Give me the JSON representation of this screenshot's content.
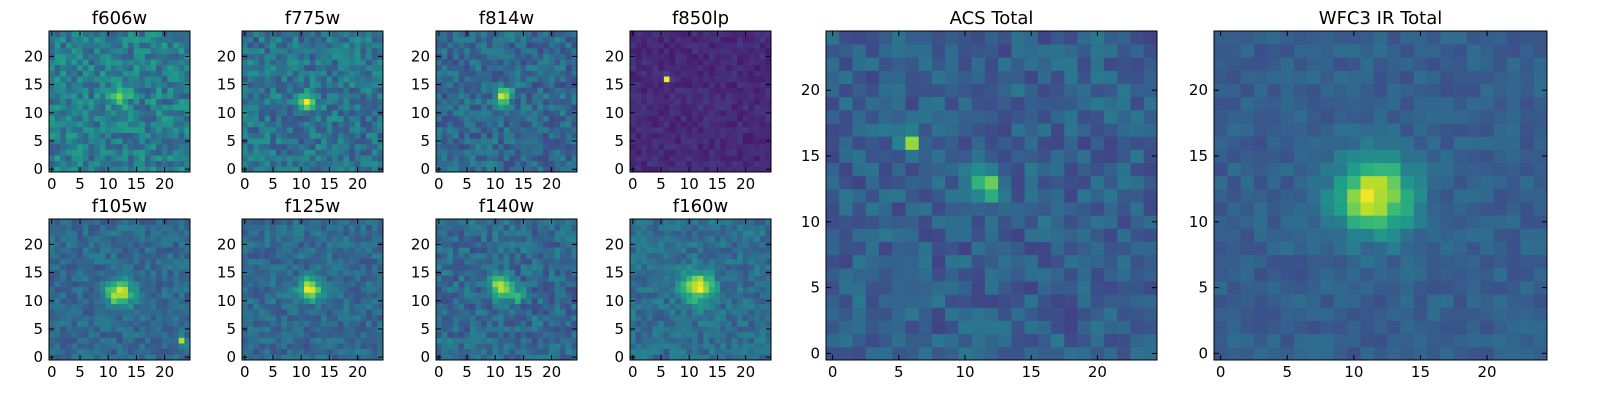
{
  "chart_data": [
    {
      "type": "heatmap",
      "title": "f606w",
      "x_ticks": [
        0,
        5,
        10,
        15,
        20
      ],
      "y_ticks": [
        0,
        5,
        10,
        15,
        20
      ],
      "xlim": [
        -0.5,
        24.5
      ],
      "ylim": [
        -0.5,
        24.5
      ],
      "grid_size": 25,
      "colormap": "viridis",
      "background_level": 0.42,
      "noise_amplitude": 0.3,
      "sources": [
        {
          "x": 12,
          "y": 13,
          "amplitude": 0.5,
          "sigma": 1.1
        }
      ]
    },
    {
      "type": "heatmap",
      "title": "f775w",
      "x_ticks": [
        0,
        5,
        10,
        15,
        20
      ],
      "y_ticks": [
        0,
        5,
        10,
        15,
        20
      ],
      "xlim": [
        -0.5,
        24.5
      ],
      "ylim": [
        -0.5,
        24.5
      ],
      "grid_size": 25,
      "colormap": "viridis",
      "background_level": 0.38,
      "noise_amplitude": 0.28,
      "sources": [
        {
          "x": 11,
          "y": 12,
          "amplitude": 0.55,
          "sigma": 1.1
        }
      ]
    },
    {
      "type": "heatmap",
      "title": "f814w",
      "x_ticks": [
        0,
        5,
        10,
        15,
        20
      ],
      "y_ticks": [
        0,
        5,
        10,
        15,
        20
      ],
      "xlim": [
        -0.5,
        24.5
      ],
      "ylim": [
        -0.5,
        24.5
      ],
      "grid_size": 25,
      "colormap": "viridis",
      "background_level": 0.34,
      "noise_amplitude": 0.26,
      "sources": [
        {
          "x": 11.5,
          "y": 13,
          "amplitude": 0.6,
          "sigma": 1.0
        }
      ]
    },
    {
      "type": "heatmap",
      "title": "f850lp",
      "x_ticks": [
        0,
        5,
        10,
        15,
        20
      ],
      "y_ticks": [
        0,
        5,
        10,
        15,
        20
      ],
      "xlim": [
        -0.5,
        24.5
      ],
      "ylim": [
        -0.5,
        24.5
      ],
      "grid_size": 25,
      "colormap": "viridis",
      "background_level": 0.12,
      "noise_amplitude": 0.1,
      "sources": [
        {
          "x": 6,
          "y": 16,
          "amplitude": 0.85,
          "sigma": 0.4
        }
      ]
    },
    {
      "type": "heatmap",
      "title": "f105w",
      "x_ticks": [
        0,
        5,
        10,
        15,
        20
      ],
      "y_ticks": [
        0,
        5,
        10,
        15,
        20
      ],
      "xlim": [
        -0.5,
        24.5
      ],
      "ylim": [
        -0.5,
        24.5
      ],
      "grid_size": 25,
      "colormap": "viridis",
      "background_level": 0.34,
      "noise_amplitude": 0.2,
      "sources": [
        {
          "x": 12,
          "y": 11.5,
          "amplitude": 0.6,
          "sigma": 1.6
        },
        {
          "x": 23,
          "y": 3,
          "amplitude": 0.45,
          "sigma": 0.6
        }
      ]
    },
    {
      "type": "heatmap",
      "title": "f125w",
      "x_ticks": [
        0,
        5,
        10,
        15,
        20
      ],
      "y_ticks": [
        0,
        5,
        10,
        15,
        20
      ],
      "xlim": [
        -0.5,
        24.5
      ],
      "ylim": [
        -0.5,
        24.5
      ],
      "grid_size": 25,
      "colormap": "viridis",
      "background_level": 0.34,
      "noise_amplitude": 0.2,
      "sources": [
        {
          "x": 11.5,
          "y": 12,
          "amplitude": 0.6,
          "sigma": 1.4
        }
      ]
    },
    {
      "type": "heatmap",
      "title": "f140w",
      "x_ticks": [
        0,
        5,
        10,
        15,
        20
      ],
      "y_ticks": [
        0,
        5,
        10,
        15,
        20
      ],
      "xlim": [
        -0.5,
        24.5
      ],
      "ylim": [
        -0.5,
        24.5
      ],
      "grid_size": 25,
      "colormap": "viridis",
      "background_level": 0.34,
      "noise_amplitude": 0.24,
      "sources": [
        {
          "x": 11,
          "y": 12.5,
          "amplitude": 0.55,
          "sigma": 1.3
        },
        {
          "x": 14,
          "y": 11,
          "amplitude": 0.4,
          "sigma": 0.8
        }
      ]
    },
    {
      "type": "heatmap",
      "title": "f160w",
      "x_ticks": [
        0,
        5,
        10,
        15,
        20
      ],
      "y_ticks": [
        0,
        5,
        10,
        15,
        20
      ],
      "xlim": [
        -0.5,
        24.5
      ],
      "ylim": [
        -0.5,
        24.5
      ],
      "grid_size": 25,
      "colormap": "viridis",
      "background_level": 0.36,
      "noise_amplitude": 0.2,
      "sources": [
        {
          "x": 11.5,
          "y": 12.5,
          "amplitude": 0.6,
          "sigma": 1.9
        }
      ]
    },
    {
      "type": "heatmap",
      "title": "ACS Total",
      "x_ticks": [
        0,
        5,
        10,
        15,
        20
      ],
      "y_ticks": [
        0,
        5,
        10,
        15,
        20
      ],
      "xlim": [
        -0.5,
        24.5
      ],
      "ylim": [
        -0.5,
        24.5
      ],
      "grid_size": 25,
      "colormap": "viridis",
      "background_level": 0.3,
      "noise_amplitude": 0.2,
      "sources": [
        {
          "x": 6,
          "y": 16,
          "amplitude": 0.6,
          "sigma": 0.45
        },
        {
          "x": 11.5,
          "y": 13,
          "amplitude": 0.5,
          "sigma": 0.9
        }
      ]
    },
    {
      "type": "heatmap",
      "title": "WFC3 IR Total",
      "x_ticks": [
        0,
        5,
        10,
        15,
        20
      ],
      "y_ticks": [
        0,
        5,
        10,
        15,
        20
      ],
      "xlim": [
        -0.5,
        24.5
      ],
      "ylim": [
        -0.5,
        24.5
      ],
      "grid_size": 25,
      "colormap": "viridis",
      "background_level": 0.3,
      "noise_amplitude": 0.12,
      "sources": [
        {
          "x": 11.5,
          "y": 12,
          "amplitude": 0.65,
          "sigma": 2.0
        }
      ]
    }
  ]
}
